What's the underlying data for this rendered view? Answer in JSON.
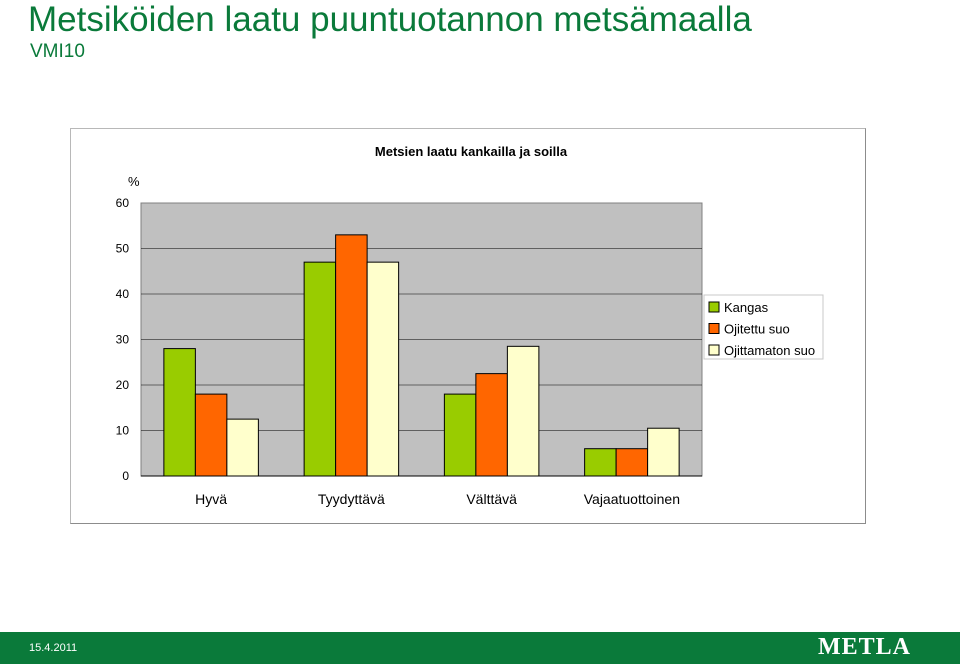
{
  "slide": {
    "title": "Metsiköiden laatu puuntuotannon metsämaalla",
    "subtitle": "VMI10",
    "date": "15.4.2011",
    "logo": "METLA",
    "brand_color": "#0a7a3a"
  },
  "chart_data": {
    "type": "bar",
    "title": "Metsien laatu kankailla ja soilla",
    "ylabel": "%",
    "xlabel": "",
    "ylim": [
      0,
      60
    ],
    "yticks": [
      "0",
      "10",
      "20",
      "30",
      "40",
      "50",
      "60"
    ],
    "categories": [
      "Hyvä",
      "Tyydyttävä",
      "Välttävä",
      "Vajaatuottoinen"
    ],
    "series": [
      {
        "name": "Kangas",
        "color": "#99cc00",
        "values": [
          28,
          47,
          18,
          6
        ]
      },
      {
        "name": "Ojitettu suo",
        "color": "#ff6600",
        "values": [
          18,
          53,
          22.5,
          6
        ]
      },
      {
        "name": "Ojittamaton suo",
        "color": "#ffffcc",
        "values": [
          12.5,
          47,
          28.5,
          10.5
        ]
      }
    ],
    "grid": true,
    "legend_position": "right",
    "plot_background": "#c0c0c0"
  }
}
